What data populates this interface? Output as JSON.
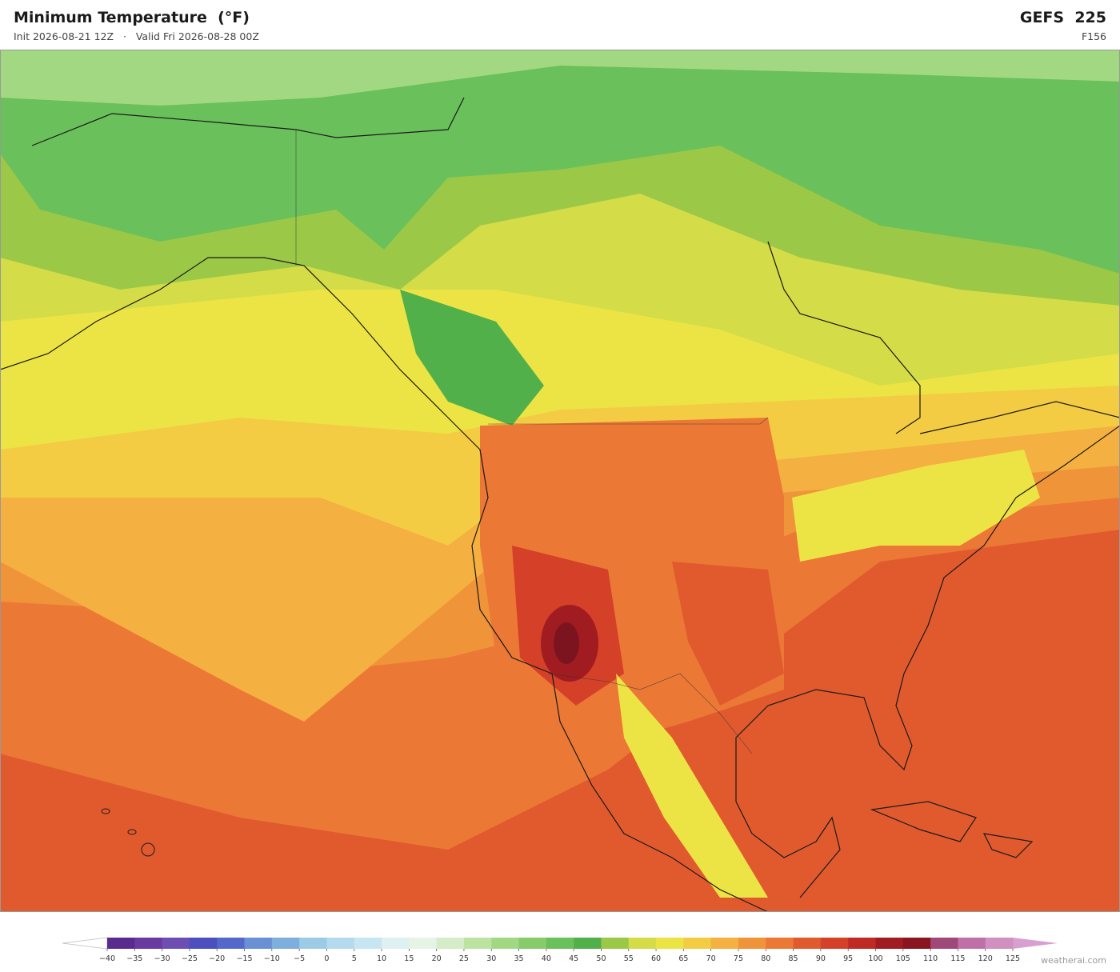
{
  "header": {
    "title": "Minimum Temperature  (°F)",
    "subtitle": "Init 2026-08-21 12Z   ·   Valid Fri 2026-08-28 00Z",
    "model": "GEFS  225",
    "forecast_hour": "F156"
  },
  "colorbar": {
    "ticks": [
      {
        "value": -40,
        "label": "−40"
      },
      {
        "value": -35,
        "label": "−35"
      },
      {
        "value": -30,
        "label": "−30"
      },
      {
        "value": -25,
        "label": "−25"
      },
      {
        "value": -20,
        "label": "−20"
      },
      {
        "value": -15,
        "label": "−15"
      },
      {
        "value": -10,
        "label": "−10"
      },
      {
        "value": -5,
        "label": "−5"
      },
      0,
      5,
      10,
      15,
      20,
      25,
      30,
      35,
      40,
      45,
      50,
      55,
      60,
      65,
      70,
      75,
      80,
      85,
      90,
      95,
      100,
      105,
      110,
      115,
      120,
      125
    ],
    "colors": [
      "#5a2a8e",
      "#6a3aa0",
      "#6d4fb3",
      "#4b4fc0",
      "#5468cc",
      "#6a8fd4",
      "#7eaedc",
      "#9ccbe6",
      "#b3daee",
      "#c8e6f2",
      "#def0f2",
      "#e6f4e6",
      "#d4ecc8",
      "#bde3a0",
      "#a3d882",
      "#86cc6a",
      "#6ac05a",
      "#52b04a",
      "#9cc848",
      "#d4dc48",
      "#ece444",
      "#f4cc44",
      "#f4b040",
      "#f0943a",
      "#ec7836",
      "#e05a2e",
      "#d44028",
      "#c02a24",
      "#a01c20",
      "#8a1420",
      "#a04878",
      "#c070a8",
      "#d090c0"
    ],
    "extend_low_color": "#ffffff",
    "extend_high_color": "#d8a0d0"
  },
  "footer": {
    "watermark": "weatherai.com"
  }
}
